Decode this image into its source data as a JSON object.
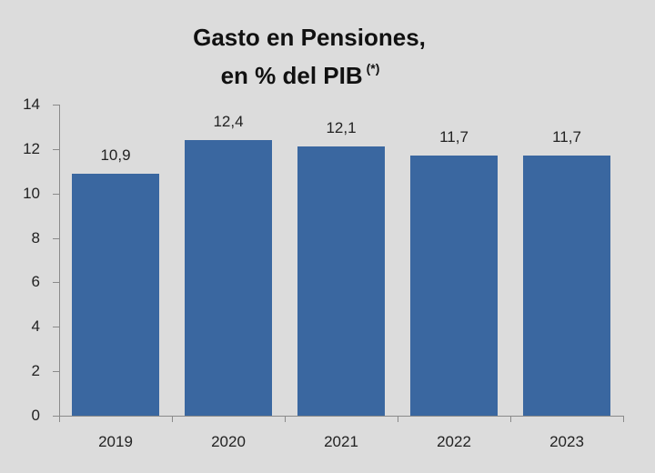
{
  "title": {
    "line1": "Gasto en Pensiones,",
    "line2": "en % del PIB",
    "note": "(*)"
  },
  "colors": {
    "bar": "#3a67a0",
    "background": "#dcdcdc",
    "axis": "#8a8a8a"
  },
  "chart_data": {
    "type": "bar",
    "title": "Gasto en Pensiones, en % del PIB (*)",
    "categories": [
      "2019",
      "2020",
      "2021",
      "2022",
      "2023"
    ],
    "values": [
      10.9,
      12.4,
      12.1,
      11.7,
      11.7
    ],
    "value_labels": [
      "10,9",
      "12,4",
      "12,1",
      "11,7",
      "11,7"
    ],
    "xlabel": "",
    "ylabel": "",
    "ylim": [
      0,
      14
    ],
    "yticks": [
      0,
      2,
      4,
      6,
      8,
      10,
      12,
      14
    ],
    "grid": false,
    "legend": null
  }
}
